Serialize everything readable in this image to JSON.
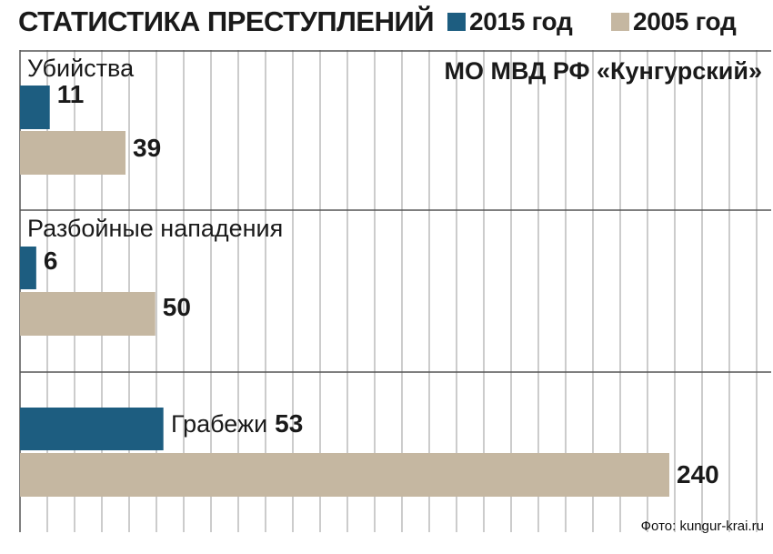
{
  "colors": {
    "series_2015": "#1d5d80",
    "series_2005": "#c5b7a1",
    "grid": "#9a9a9a",
    "text": "#1a1a1a"
  },
  "header": {
    "title": "СТАТИСТИКА ПРЕСТУПЛЕНИЙ"
  },
  "legend": [
    {
      "label": "2015 год",
      "color": "#1d5d80"
    },
    {
      "label": "2005 год",
      "color": "#c5b7a1"
    }
  ],
  "subtitle": "МО МВД РФ «Кунгурский»",
  "credit": "Фото: kungur-krai.ru",
  "chart_data": {
    "type": "bar",
    "orientation": "horizontal",
    "title": "СТАТИСТИКА ПРЕСТУПЛЕНИЙ",
    "subtitle": "МО МВД РФ «Кунгурский»",
    "categories": [
      "Убийства",
      "Разбойные нападения",
      "Грабежи"
    ],
    "series": [
      {
        "name": "2015 год",
        "values": [
          11,
          6,
          53
        ]
      },
      {
        "name": "2005 год",
        "values": [
          39,
          50,
          240
        ]
      }
    ],
    "xlim": [
      0,
      280
    ],
    "grid": true,
    "legend_position": "top"
  }
}
